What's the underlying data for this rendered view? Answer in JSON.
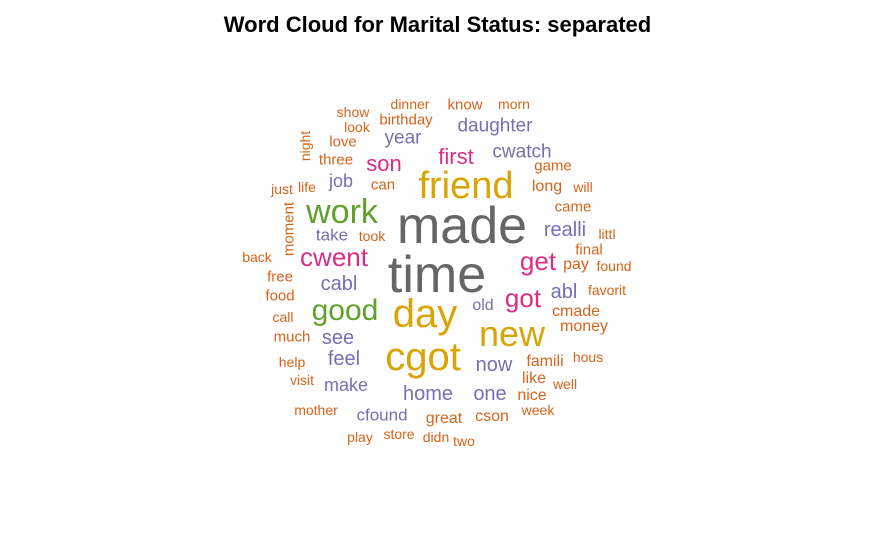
{
  "page": {
    "title": "Word Cloud for Marital Status: separated"
  },
  "chart_data": {
    "type": "wordcloud",
    "title": "Word Cloud for Marital Status: separated",
    "colors": {
      "gray": "#666666",
      "gold": "#D9A406",
      "green": "#5FA12A",
      "magenta": "#DA2E86",
      "slate": "#7370B3",
      "orange": "#D6641A"
    },
    "words": [
      {
        "text": "made",
        "color": "gray",
        "size": 52,
        "rank": 1
      },
      {
        "text": "time",
        "color": "gray",
        "size": 52,
        "rank": 2
      },
      {
        "text": "friend",
        "color": "gold",
        "size": 38,
        "rank": 3
      },
      {
        "text": "cgot",
        "color": "gold",
        "size": 40,
        "rank": 4
      },
      {
        "text": "day",
        "color": "gold",
        "size": 40,
        "rank": 5
      },
      {
        "text": "new",
        "color": "gold",
        "size": 36,
        "rank": 6
      },
      {
        "text": "work",
        "color": "green",
        "size": 34,
        "rank": 7
      },
      {
        "text": "good",
        "color": "green",
        "size": 30,
        "rank": 8
      },
      {
        "text": "cwent",
        "color": "magenta",
        "size": 26,
        "rank": 9
      },
      {
        "text": "get",
        "color": "magenta",
        "size": 26,
        "rank": 10
      },
      {
        "text": "got",
        "color": "magenta",
        "size": 26,
        "rank": 11
      },
      {
        "text": "son",
        "color": "magenta",
        "size": 22,
        "rank": 12
      },
      {
        "text": "first",
        "color": "magenta",
        "size": 22,
        "rank": 13
      },
      {
        "text": "realli",
        "color": "slate",
        "size": 20,
        "rank": 14
      },
      {
        "text": "abl",
        "color": "slate",
        "size": 20,
        "rank": 15
      },
      {
        "text": "cabl",
        "color": "slate",
        "size": 20,
        "rank": 16
      },
      {
        "text": "see",
        "color": "slate",
        "size": 20,
        "rank": 17
      },
      {
        "text": "feel",
        "color": "slate",
        "size": 20,
        "rank": 18
      },
      {
        "text": "make",
        "color": "slate",
        "size": 18,
        "rank": 19
      },
      {
        "text": "home",
        "color": "slate",
        "size": 20,
        "rank": 20
      },
      {
        "text": "one",
        "color": "slate",
        "size": 20,
        "rank": 21
      },
      {
        "text": "now",
        "color": "slate",
        "size": 20,
        "rank": 22
      },
      {
        "text": "cwatch",
        "color": "slate",
        "size": 19,
        "rank": 23
      },
      {
        "text": "daughter",
        "color": "slate",
        "size": 19,
        "rank": 24
      },
      {
        "text": "year",
        "color": "slate",
        "size": 19,
        "rank": 25
      },
      {
        "text": "job",
        "color": "slate",
        "size": 18,
        "rank": 26
      },
      {
        "text": "take",
        "color": "slate",
        "size": 17,
        "rank": 27
      },
      {
        "text": "cfound",
        "color": "slate",
        "size": 17,
        "rank": 28
      },
      {
        "text": "old",
        "color": "slate",
        "size": 16,
        "rank": 29
      },
      {
        "text": "long",
        "color": "orange",
        "size": 16,
        "rank": 30
      },
      {
        "text": "cmade",
        "color": "orange",
        "size": 16,
        "rank": 31
      },
      {
        "text": "money",
        "color": "orange",
        "size": 16,
        "rank": 32
      },
      {
        "text": "famili",
        "color": "orange",
        "size": 16,
        "rank": 33
      },
      {
        "text": "like",
        "color": "orange",
        "size": 16,
        "rank": 34
      },
      {
        "text": "nice",
        "color": "orange",
        "size": 16,
        "rank": 35
      },
      {
        "text": "cson",
        "color": "orange",
        "size": 16,
        "rank": 36
      },
      {
        "text": "great",
        "color": "orange",
        "size": 16,
        "rank": 37
      },
      {
        "text": "pay",
        "color": "orange",
        "size": 16,
        "rank": 38
      },
      {
        "text": "final",
        "color": "orange",
        "size": 15,
        "rank": 39
      },
      {
        "text": "came",
        "color": "orange",
        "size": 15,
        "rank": 40
      },
      {
        "text": "game",
        "color": "orange",
        "size": 15,
        "rank": 41
      },
      {
        "text": "three",
        "color": "orange",
        "size": 15,
        "rank": 42
      },
      {
        "text": "love",
        "color": "orange",
        "size": 15,
        "rank": 43
      },
      {
        "text": "birthday",
        "color": "orange",
        "size": 15,
        "rank": 44
      },
      {
        "text": "know",
        "color": "orange",
        "size": 15,
        "rank": 45
      },
      {
        "text": "can",
        "color": "orange",
        "size": 15,
        "rank": 46
      },
      {
        "text": "moment",
        "color": "orange",
        "size": 15,
        "rank": 47
      },
      {
        "text": "much",
        "color": "orange",
        "size": 15,
        "rank": 48
      },
      {
        "text": "food",
        "color": "orange",
        "size": 15,
        "rank": 49
      },
      {
        "text": "free",
        "color": "orange",
        "size": 15,
        "rank": 50
      },
      {
        "text": "life",
        "color": "orange",
        "size": 14,
        "rank": 51
      },
      {
        "text": "dinner",
        "color": "orange",
        "size": 14,
        "rank": 52
      },
      {
        "text": "show",
        "color": "orange",
        "size": 14,
        "rank": 53
      },
      {
        "text": "look",
        "color": "orange",
        "size": 14,
        "rank": 54
      },
      {
        "text": "morn",
        "color": "orange",
        "size": 14,
        "rank": 55
      },
      {
        "text": "will",
        "color": "orange",
        "size": 14,
        "rank": 56
      },
      {
        "text": "littl",
        "color": "orange",
        "size": 14,
        "rank": 57
      },
      {
        "text": "found",
        "color": "orange",
        "size": 14,
        "rank": 58
      },
      {
        "text": "favorit",
        "color": "orange",
        "size": 14,
        "rank": 59
      },
      {
        "text": "hous",
        "color": "orange",
        "size": 14,
        "rank": 60
      },
      {
        "text": "well",
        "color": "orange",
        "size": 14,
        "rank": 61
      },
      {
        "text": "week",
        "color": "orange",
        "size": 14,
        "rank": 62
      },
      {
        "text": "two",
        "color": "orange",
        "size": 14,
        "rank": 63
      },
      {
        "text": "didn",
        "color": "orange",
        "size": 14,
        "rank": 64
      },
      {
        "text": "store",
        "color": "orange",
        "size": 14,
        "rank": 65
      },
      {
        "text": "play",
        "color": "orange",
        "size": 14,
        "rank": 66
      },
      {
        "text": "mother",
        "color": "orange",
        "size": 14,
        "rank": 67
      },
      {
        "text": "visit",
        "color": "orange",
        "size": 14,
        "rank": 68
      },
      {
        "text": "help",
        "color": "orange",
        "size": 14,
        "rank": 69
      },
      {
        "text": "call",
        "color": "orange",
        "size": 14,
        "rank": 70
      },
      {
        "text": "back",
        "color": "orange",
        "size": 14,
        "rank": 71
      },
      {
        "text": "just",
        "color": "orange",
        "size": 14,
        "rank": 72
      },
      {
        "text": "night",
        "color": "orange",
        "size": 14,
        "rank": 73
      },
      {
        "text": "took",
        "color": "orange",
        "size": 14,
        "rank": 74
      }
    ]
  }
}
